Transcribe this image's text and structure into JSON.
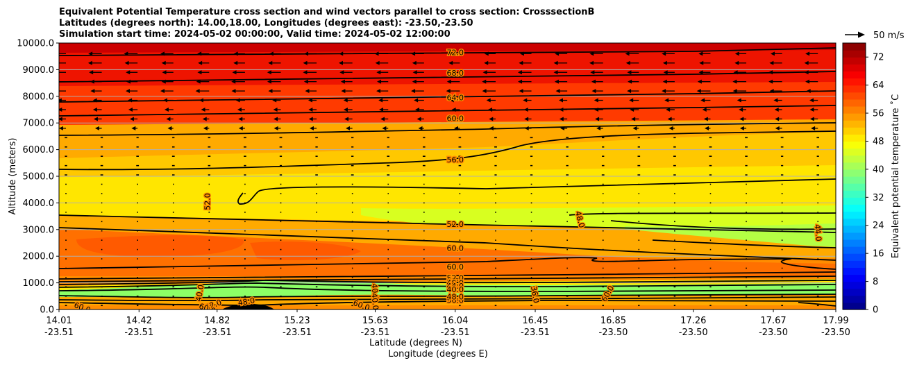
{
  "chart_data": {
    "type": "contour",
    "title_lines": [
      "Equivalent Potential Temperature cross section and wind vectors parallel to cross section: CrosssectionB",
      "Latitudes (degrees north): 14.00,18.00, Longitudes (degrees east): -23.50,-23.50",
      "Simulation start time: 2024-05-02 00:00:00, Valid time: 2024-05-02 12:00:00"
    ],
    "xlabel_lat": "Latitude (degrees N)",
    "xlabel_lon": "Longitude (degrees E)",
    "ylabel": "Altitude (meters)",
    "xlim": [
      14.01,
      17.99
    ],
    "ylim": [
      0,
      10000
    ],
    "x_ticks": [
      {
        "lat": "14.01",
        "lon": "-23.51",
        "value": 14.01
      },
      {
        "lat": "14.42",
        "lon": "-23.51",
        "value": 14.42
      },
      {
        "lat": "14.82",
        "lon": "-23.51",
        "value": 14.82
      },
      {
        "lat": "15.23",
        "lon": "-23.51",
        "value": 15.23
      },
      {
        "lat": "15.63",
        "lon": "-23.51",
        "value": 15.63
      },
      {
        "lat": "16.04",
        "lon": "-23.51",
        "value": 16.04
      },
      {
        "lat": "16.45",
        "lon": "-23.51",
        "value": 16.45
      },
      {
        "lat": "16.85",
        "lon": "-23.50",
        "value": 16.85
      },
      {
        "lat": "17.26",
        "lon": "-23.50",
        "value": 17.26
      },
      {
        "lat": "17.67",
        "lon": "-23.50",
        "value": 17.67
      },
      {
        "lat": "17.99",
        "lon": "-23.50",
        "value": 17.99
      }
    ],
    "y_ticks": [
      {
        "label": "0.0",
        "value": 0
      },
      {
        "label": "1000.0",
        "value": 1000
      },
      {
        "label": "2000.0",
        "value": 2000
      },
      {
        "label": "3000.0",
        "value": 3000
      },
      {
        "label": "4000.0",
        "value": 4000
      },
      {
        "label": "5000.0",
        "value": 5000
      },
      {
        "label": "6000.0",
        "value": 6000
      },
      {
        "label": "7000.0",
        "value": 7000
      },
      {
        "label": "8000.0",
        "value": 8000
      },
      {
        "label": "9000.0",
        "value": 9000
      },
      {
        "label": "10000.0",
        "value": 10000
      }
    ],
    "colorbar": {
      "label": "Equivalent potential temperature ˚C",
      "range": [
        0,
        76
      ],
      "ticks": [
        {
          "label": "0",
          "value": 0
        },
        {
          "label": "8",
          "value": 8
        },
        {
          "label": "16",
          "value": 16
        },
        {
          "label": "24",
          "value": 24
        },
        {
          "label": "32",
          "value": 32
        },
        {
          "label": "40",
          "value": 40
        },
        {
          "label": "48",
          "value": 48
        },
        {
          "label": "56",
          "value": 56
        },
        {
          "label": "64",
          "value": 64
        },
        {
          "label": "72",
          "value": 72
        }
      ]
    },
    "quiver_key": {
      "label": "50 m/s",
      "speed": 50
    },
    "colors": {
      "bg_orange": "#ff8c00",
      "band_orange": "#ff7000",
      "deep_orange": "#ff5a00",
      "amber": "#ffaa00",
      "yellow_orange": "#ffc800",
      "yellow": "#ffe600",
      "lime": "#d8ff20",
      "pale_green": "#b4ff44",
      "green": "#8cff66",
      "red_orange": "#ff3a00",
      "red": "#ee1400",
      "dark_red": "#cc0000",
      "black": "#000000"
    },
    "contour_labels": [
      {
        "text": "72.0",
        "x": 16.04,
        "y": 9650,
        "rot": 0
      },
      {
        "text": "68.0",
        "x": 16.04,
        "y": 8880,
        "rot": 0
      },
      {
        "text": "64.0",
        "x": 16.04,
        "y": 7950,
        "rot": 0
      },
      {
        "text": "60.0",
        "x": 16.04,
        "y": 7170,
        "rot": 0
      },
      {
        "text": "56.0",
        "x": 16.04,
        "y": 5630,
        "rot": 0
      },
      {
        "text": "52.0",
        "x": 14.77,
        "y": 4050,
        "rot": -90
      },
      {
        "text": "52.0",
        "x": 16.04,
        "y": 3200,
        "rot": 0
      },
      {
        "text": "48.0",
        "x": 16.68,
        "y": 3380,
        "rot": 75
      },
      {
        "text": "44.0",
        "x": 17.9,
        "y": 2880,
        "rot": 85
      },
      {
        "text": "60.0",
        "x": 16.04,
        "y": 2300,
        "rot": 0
      },
      {
        "text": "60.0",
        "x": 16.04,
        "y": 1600,
        "rot": 0
      },
      {
        "text": "52.0",
        "x": 16.04,
        "y": 1180,
        "rot": 0
      },
      {
        "text": "48.0",
        "x": 16.04,
        "y": 1000,
        "rot": 0
      },
      {
        "text": "44.0",
        "x": 16.04,
        "y": 880,
        "rot": 0
      },
      {
        "text": "40.0",
        "x": 16.04,
        "y": 760,
        "rot": 0
      },
      {
        "text": "36.0",
        "x": 16.45,
        "y": 560,
        "rot": 80
      },
      {
        "text": "40.0",
        "x": 15.63,
        "y": 660,
        "rot": 85
      },
      {
        "text": "40.0",
        "x": 15.63,
        "y": 300,
        "rot": 85
      },
      {
        "text": "52.0",
        "x": 14.8,
        "y": 180,
        "rot": -20
      },
      {
        "text": "48.0",
        "x": 14.97,
        "y": 300,
        "rot": -10
      },
      {
        "text": "60.0",
        "x": 14.77,
        "y": 40,
        "rot": 20
      },
      {
        "text": "60.0",
        "x": 14.13,
        "y": 80,
        "rot": 20
      },
      {
        "text": "60.0",
        "x": 15.56,
        "y": 160,
        "rot": 20
      },
      {
        "text": "40.0",
        "x": 14.73,
        "y": 620,
        "rot": -80
      },
      {
        "text": "56.0",
        "x": 16.04,
        "y": 350,
        "rot": 0
      },
      {
        "text": "48.0",
        "x": 16.04,
        "y": 480,
        "rot": 0
      },
      {
        "text": "60.0",
        "x": 16.82,
        "y": 600,
        "rot": -60
      }
    ]
  }
}
